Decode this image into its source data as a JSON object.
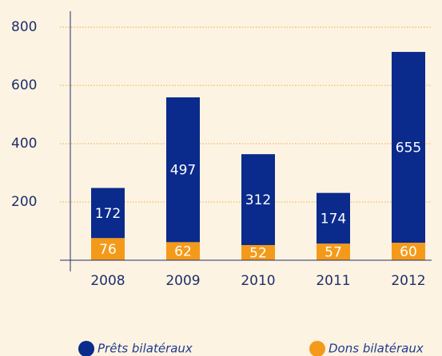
{
  "chart_data": {
    "type": "stacked_bar",
    "categories": [
      "2008",
      "2009",
      "2010",
      "2011",
      "2012"
    ],
    "series": [
      {
        "name": "Dons bilatéraux",
        "color": "#f49a1a",
        "values": [
          76,
          62,
          52,
          57,
          60
        ]
      },
      {
        "name": "Prêts bilatéraux",
        "color": "#0a2a8c",
        "values": [
          172,
          497,
          312,
          174,
          655
        ]
      }
    ],
    "ylim": [
      0,
      800
    ],
    "yticks": [
      200,
      400,
      600,
      800
    ],
    "grid": true
  }
}
